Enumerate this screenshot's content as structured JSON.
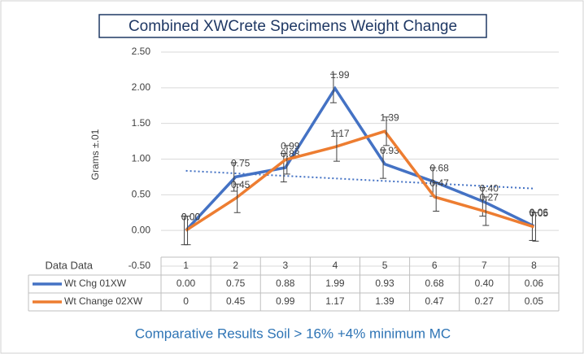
{
  "chart_data": {
    "type": "line",
    "title": "Combined XWCrete Specimens Weight Change",
    "y_label": "Grams ±.01",
    "table_header": "Data Data",
    "caption": "Comparative Results Soil > 16% +4% minimum MC",
    "categories": [
      "1",
      "2",
      "3",
      "4",
      "5",
      "6",
      "7",
      "8"
    ],
    "series": [
      {
        "name": "Wt Chg 01XW",
        "color": "#4472c4",
        "values": [
          0,
          0.75,
          0.88,
          1.99,
          0.93,
          0.68,
          0.4,
          0.06
        ],
        "value_labels": [
          "0.00",
          "0.75",
          "0.88",
          "1.99",
          "0.93",
          "0.68",
          "0.40",
          "0.06"
        ],
        "table_labels": [
          "0.00",
          "0.75",
          "0.88",
          "1.99",
          "0.93",
          "0.68",
          "0.40",
          "0.06"
        ],
        "errors": [
          0.2,
          0.2,
          0.2,
          0.2,
          0.2,
          0.2,
          0.2,
          0.2
        ],
        "trendline": "linear"
      },
      {
        "name": "Wt Change 02XW",
        "color": "#ed7d31",
        "values": [
          0,
          0.45,
          0.99,
          1.17,
          1.39,
          0.47,
          0.27,
          0.05
        ],
        "value_labels": [
          "0.00",
          "0.45",
          "0.99",
          "1.17",
          "1.39",
          "0.47",
          "0.27",
          "0.05"
        ],
        "table_labels": [
          "0",
          "0.45",
          "0.99",
          "1.17",
          "1.39",
          "0.47",
          "0.27",
          "0.05"
        ],
        "errors": [
          0.2,
          0.2,
          0.2,
          0.2,
          0.2,
          0.2,
          0.2,
          0.2
        ]
      }
    ],
    "ylim": [
      -0.5,
      2.5
    ],
    "yticks": [
      {
        "value": -0.5,
        "label": "-0.50"
      },
      {
        "value": 0,
        "label": "0.00"
      },
      {
        "value": 0.5,
        "label": "0.50"
      },
      {
        "value": 1,
        "label": "1.00"
      },
      {
        "value": 1.5,
        "label": "1.50"
      },
      {
        "value": 2,
        "label": "2.00"
      },
      {
        "value": 2.5,
        "label": "2.50"
      }
    ],
    "grid": true
  }
}
